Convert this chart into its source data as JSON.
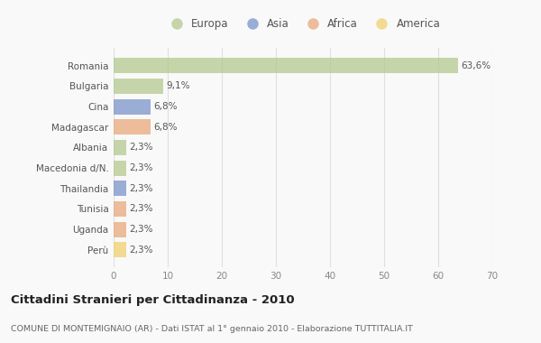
{
  "categories": [
    "Romania",
    "Bulgaria",
    "Cina",
    "Madagascar",
    "Albania",
    "Macedonia d/N.",
    "Thailandia",
    "Tunisia",
    "Uganda",
    "Perù"
  ],
  "values": [
    63.6,
    9.1,
    6.8,
    6.8,
    2.3,
    2.3,
    2.3,
    2.3,
    2.3,
    2.3
  ],
  "labels": [
    "63,6%",
    "9,1%",
    "6,8%",
    "6,8%",
    "2,3%",
    "2,3%",
    "2,3%",
    "2,3%",
    "2,3%",
    "2,3%"
  ],
  "colors": [
    "#b5c98e",
    "#b5c98e",
    "#7b94c9",
    "#e8a87c",
    "#b5c98e",
    "#b5c98e",
    "#7b94c9",
    "#e8a87c",
    "#e8a87c",
    "#f0d070"
  ],
  "legend": [
    {
      "label": "Europa",
      "color": "#b5c98e"
    },
    {
      "label": "Asia",
      "color": "#7b94c9"
    },
    {
      "label": "Africa",
      "color": "#e8a87c"
    },
    {
      "label": "America",
      "color": "#f0d070"
    }
  ],
  "xlim": [
    0,
    70
  ],
  "xticks": [
    0,
    10,
    20,
    30,
    40,
    50,
    60,
    70
  ],
  "title": "Cittadini Stranieri per Cittadinanza - 2010",
  "subtitle": "COMUNE DI MONTEMIGNAIO (AR) - Dati ISTAT al 1° gennaio 2010 - Elaborazione TUTTITALIA.IT",
  "background_color": "#f9f9f9",
  "grid_color": "#e0e0e0",
  "bar_height": 0.75,
  "bar_alpha": 0.75
}
